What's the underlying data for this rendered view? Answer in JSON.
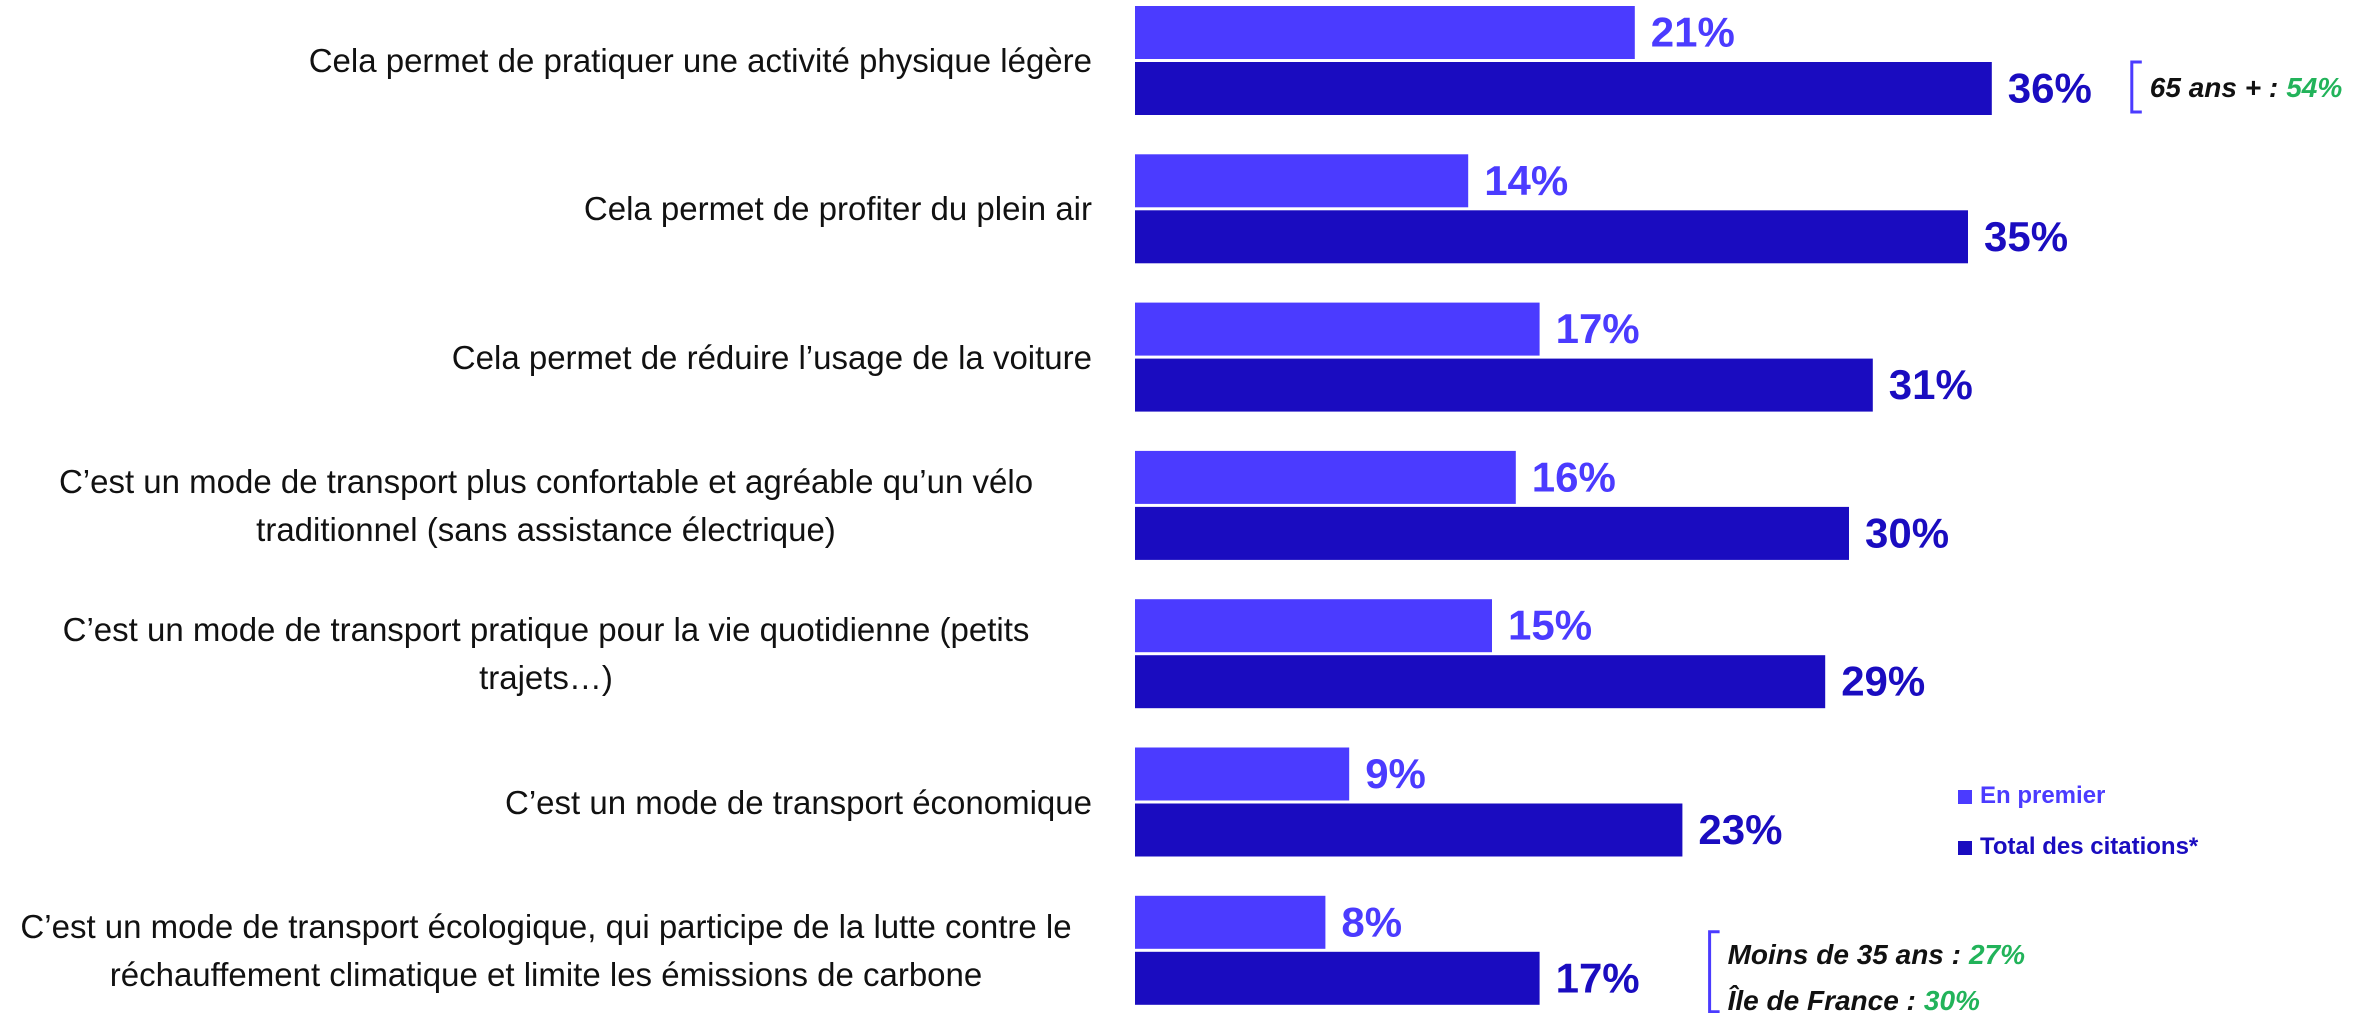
{
  "chart_data": {
    "type": "bar",
    "orientation": "horizontal",
    "categories": [
      "Cela permet de pratiquer une activité physique légère",
      "Cela permet de profiter du plein air",
      "Cela permet de réduire l’usage de la voiture",
      "C’est un mode de transport plus confortable et agréable qu’un vélo traditionnel (sans assistance électrique)",
      "C’est un mode de transport pratique pour la vie quotidienne (petits trajets…)",
      "C’est un mode de transport économique",
      "C’est un mode de transport écologique, qui participe de la lutte contre le réchauffement climatique et limite les émissions de carbone"
    ],
    "series": [
      {
        "name": "En premier",
        "color": "#4b3bff",
        "values": [
          21,
          14,
          17,
          16,
          15,
          9,
          8
        ],
        "value_labels": [
          "21%",
          "14%",
          "17%",
          "16%",
          "15%",
          "9%",
          "8%"
        ]
      },
      {
        "name": "Total des citations*",
        "color": "#1a0cc0",
        "values": [
          36,
          35,
          31,
          30,
          29,
          23,
          17
        ],
        "value_labels": [
          "36%",
          "35%",
          "31%",
          "30%",
          "29%",
          "23%",
          "17%"
        ]
      }
    ],
    "xlim": [
      0,
      40
    ],
    "highlight_color": "#22b35a",
    "annotations": [
      {
        "category": 0,
        "items": [
          {
            "label": "65 ans + :",
            "value_label": "54%"
          }
        ]
      },
      {
        "category": 6,
        "items": [
          {
            "label": "Moins de 35 ans :",
            "value_label": "27%"
          },
          {
            "label": "Île de France :",
            "value_label": "30%"
          }
        ]
      }
    ]
  }
}
